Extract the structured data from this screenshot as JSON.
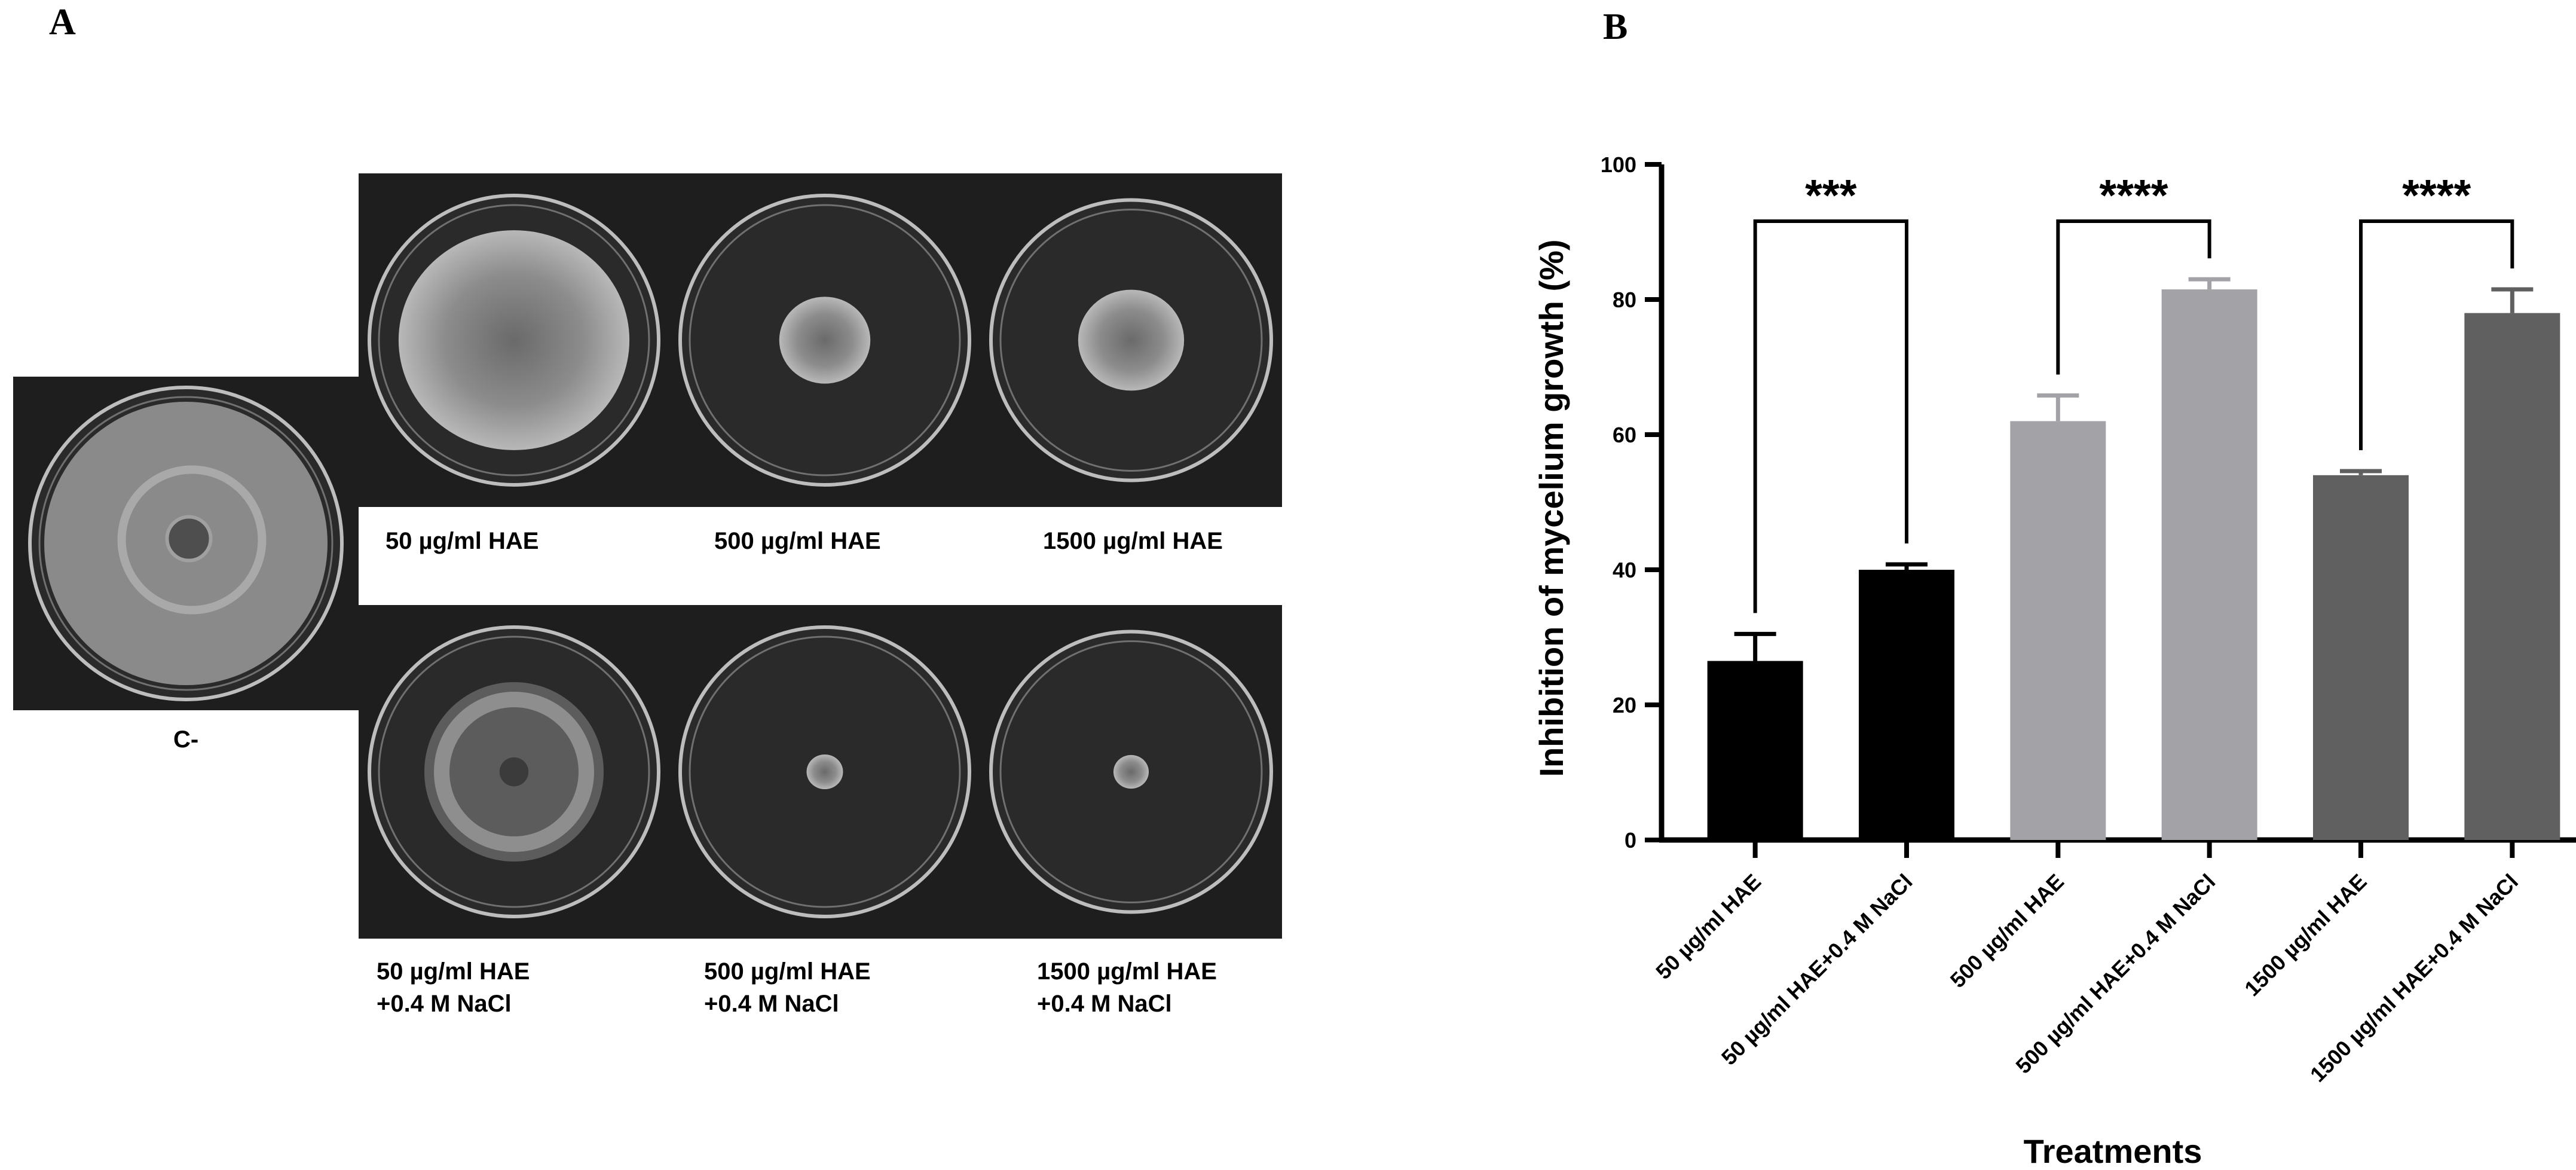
{
  "panels": {
    "a_letter": "A",
    "b_letter": "B"
  },
  "plates": [
    {
      "label": "C-",
      "colony": "control-full"
    },
    {
      "label": "50 µg/ml HAE",
      "colony": "large"
    },
    {
      "label": "500 µg/ml HAE",
      "colony": "small"
    },
    {
      "label": "1500 µg/ml HAE",
      "colony": "medium"
    },
    {
      "label": "50 µg/ml HAE\n+0.4 M NaCl",
      "colony": "ring"
    },
    {
      "label": "500 µg/ml HAE\n+0.4 M NaCl",
      "colony": "tiny"
    },
    {
      "label": "1500 µg/ml HAE\n+0.4 M NaCl",
      "colony": "tiny"
    }
  ],
  "chart_data": {
    "type": "bar",
    "categories": [
      "50 µg/ml  HAE",
      "50 µg/ml HAE+0.4 M NaCl",
      "500 µg/ml HAE",
      "500 µg/ml HAE+0.4 M NaCl",
      "1500 µg/ml HAE",
      "1500 µg/ml HAE+0.4 M NaCl"
    ],
    "values": [
      26.5,
      40,
      62,
      81.5,
      54,
      78
    ],
    "errors": [
      4,
      0.8,
      3.8,
      1.5,
      0.6,
      3.5
    ],
    "colors": [
      "#000000",
      "#000000",
      "#a3a3a7",
      "#a3a3a7",
      "#606060",
      "#606060"
    ],
    "xlabel": "Treatments",
    "ylabel": "Inhibition of mycelium growth (%)",
    "ylim": [
      0,
      100
    ],
    "yticks": [
      "0",
      "20",
      "40",
      "60",
      "80",
      "100"
    ],
    "significance": [
      {
        "from": 0,
        "to": 1,
        "label": "***"
      },
      {
        "from": 2,
        "to": 3,
        "label": "****"
      },
      {
        "from": 4,
        "to": 5,
        "label": "****"
      }
    ],
    "grid": false
  }
}
